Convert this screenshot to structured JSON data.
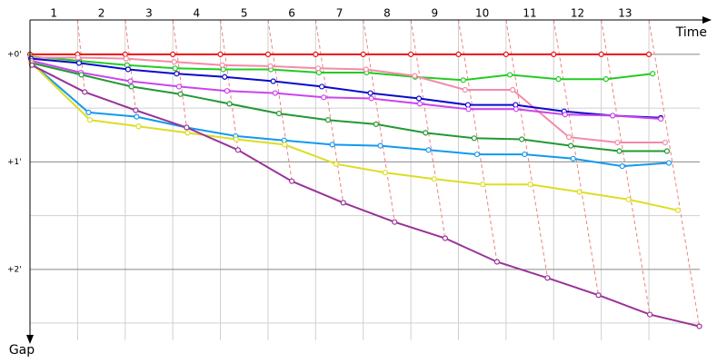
{
  "chart_data": {
    "type": "line",
    "x_label": "Time",
    "y_label": "Gap",
    "xlim": [
      0,
      14.45
    ],
    "ylim": [
      -0.32,
      2.66
    ],
    "y_inverted": true,
    "xticks": [
      {
        "value": 0.5,
        "label": "1"
      },
      {
        "value": 1.5,
        "label": "2"
      },
      {
        "value": 2.5,
        "label": "3"
      },
      {
        "value": 3.5,
        "label": "4"
      },
      {
        "value": 4.5,
        "label": "5"
      },
      {
        "value": 5.5,
        "label": "6"
      },
      {
        "value": 6.5,
        "label": "7"
      },
      {
        "value": 7.5,
        "label": "8"
      },
      {
        "value": 8.5,
        "label": "9"
      },
      {
        "value": 9.5,
        "label": "10"
      },
      {
        "value": 10.5,
        "label": "11"
      },
      {
        "value": 11.5,
        "label": "12"
      },
      {
        "value": 12.5,
        "label": "13"
      }
    ],
    "xgrid": [
      1,
      2,
      3,
      4,
      5,
      6,
      7,
      8,
      9,
      10,
      11,
      12,
      13
    ],
    "yticks": [
      {
        "value": 0,
        "label": "+0'"
      },
      {
        "value": 1,
        "label": "+1'"
      },
      {
        "value": 2,
        "label": "+2'"
      }
    ],
    "y_minor_grid": [
      0.5,
      1.5,
      2.5
    ],
    "grid": true,
    "lap_lines": true,
    "series": [
      {
        "color": "#ee1111",
        "x": [
          0,
          1,
          2,
          3,
          4,
          5,
          6,
          7,
          8,
          9,
          10,
          11,
          12,
          13
        ],
        "values": [
          0,
          0,
          0,
          0,
          0,
          0,
          0,
          0,
          0,
          0,
          0,
          0,
          0,
          0
        ]
      },
      {
        "color": "#22cc22",
        "x": [
          0.01,
          1.03,
          2.04,
          3.05,
          4.06,
          5.06,
          6.07,
          7.07,
          8.09,
          9.1,
          10.08,
          11.1,
          12.1,
          13.08
        ],
        "values": [
          0.02,
          0.06,
          0.1,
          0.13,
          0.14,
          0.14,
          0.17,
          0.17,
          0.21,
          0.24,
          0.19,
          0.23,
          0.23,
          0.18
        ]
      },
      {
        "color": "#f58aa8",
        "x": [
          0.01,
          1.01,
          2.02,
          3.03,
          4.04,
          5.05,
          6.05,
          7.06,
          8.08,
          9.14,
          10.14,
          11.32,
          12.34,
          13.34
        ],
        "values": [
          0.03,
          0.03,
          0.04,
          0.07,
          0.1,
          0.11,
          0.13,
          0.14,
          0.2,
          0.33,
          0.33,
          0.77,
          0.82,
          0.82
        ]
      },
      {
        "color": "#0a0acc",
        "x": [
          0.02,
          1.03,
          2.06,
          3.08,
          4.09,
          5.11,
          6.13,
          7.15,
          8.17,
          9.2,
          10.2,
          11.22,
          12.24,
          13.25
        ],
        "values": [
          0.04,
          0.08,
          0.14,
          0.18,
          0.21,
          0.25,
          0.3,
          0.36,
          0.41,
          0.47,
          0.47,
          0.53,
          0.57,
          0.59
        ]
      },
      {
        "color": "#cc44ee",
        "x": [
          0.03,
          1.07,
          2.11,
          3.13,
          4.14,
          5.15,
          6.17,
          7.17,
          8.19,
          9.21,
          10.21,
          11.24,
          12.24,
          13.25
        ],
        "values": [
          0.06,
          0.17,
          0.25,
          0.3,
          0.34,
          0.36,
          0.4,
          0.41,
          0.46,
          0.51,
          0.51,
          0.56,
          0.57,
          0.6
        ]
      },
      {
        "color": "#229933",
        "x": [
          0.03,
          1.08,
          2.13,
          3.16,
          4.19,
          5.23,
          6.26,
          7.27,
          8.31,
          9.33,
          10.33,
          11.36,
          12.38,
          13.38
        ],
        "values": [
          0.08,
          0.19,
          0.3,
          0.37,
          0.46,
          0.55,
          0.61,
          0.65,
          0.73,
          0.78,
          0.79,
          0.85,
          0.9,
          0.9
        ]
      },
      {
        "color": "#1199ee",
        "x": [
          0.03,
          1.23,
          2.24,
          3.29,
          4.32,
          5.34,
          6.35,
          7.36,
          8.37,
          9.39,
          10.39,
          11.41,
          12.44,
          13.42
        ],
        "values": [
          0.08,
          0.54,
          0.58,
          0.68,
          0.76,
          0.8,
          0.84,
          0.85,
          0.89,
          0.93,
          0.93,
          0.97,
          1.04,
          1.01
        ]
      },
      {
        "color": "#dddd22",
        "x": [
          0.03,
          1.26,
          2.28,
          3.31,
          4.33,
          5.35,
          6.43,
          7.46,
          8.49,
          9.51,
          10.51,
          11.54,
          12.57,
          13.61
        ],
        "values": [
          0.08,
          0.61,
          0.67,
          0.73,
          0.79,
          0.84,
          1.02,
          1.1,
          1.16,
          1.21,
          1.21,
          1.28,
          1.35,
          1.45
        ]
      },
      {
        "color": "#993399",
        "x": [
          0.04,
          1.15,
          2.22,
          3.29,
          4.37,
          5.5,
          6.58,
          7.66,
          8.72,
          9.81,
          10.87,
          11.94,
          13.02,
          14.06
        ],
        "values": [
          0.1,
          0.35,
          0.52,
          0.68,
          0.89,
          1.18,
          1.38,
          1.56,
          1.71,
          1.93,
          2.08,
          2.24,
          2.42,
          2.53
        ]
      }
    ]
  }
}
